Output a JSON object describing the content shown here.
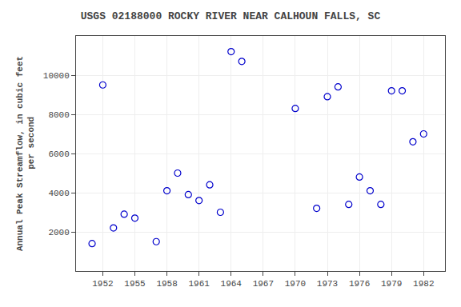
{
  "chart_data": {
    "type": "scatter",
    "title": "USGS 02188000 ROCKY RIVER NEAR CALHOUN FALLS, SC",
    "ylabel": "Annual Peak Streamflow, in cubic feet\n    per second",
    "x": [
      1951,
      1952,
      1953,
      1954,
      1955,
      1957,
      1958,
      1959,
      1960,
      1961,
      1962,
      1963,
      1964,
      1965,
      1970,
      1972,
      1973,
      1974,
      1975,
      1976,
      1977,
      1978,
      1979,
      1980,
      1981,
      1982
    ],
    "values": [
      1400,
      9500,
      2200,
      2900,
      2700,
      1500,
      4100,
      5000,
      3900,
      3600,
      4400,
      3000,
      11200,
      10700,
      8300,
      3200,
      8900,
      9400,
      3400,
      4800,
      4100,
      3400,
      9200,
      9200,
      6600,
      7000
    ],
    "color": "#0000cc",
    "marker": "open circle",
    "xlim": [
      1949.5,
      1984
    ],
    "ylim": [
      0,
      12000
    ],
    "xticks": [
      1952,
      1955,
      1958,
      1961,
      1964,
      1967,
      1970,
      1973,
      1976,
      1979,
      1982
    ],
    "yticks": [
      2000,
      4000,
      6000,
      8000,
      10000
    ],
    "grid": true
  }
}
